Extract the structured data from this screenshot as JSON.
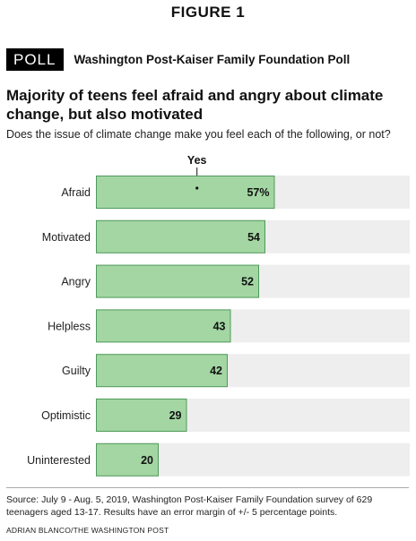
{
  "figure_label": "FIGURE 1",
  "poll_badge": "POLL",
  "poll_source": "Washington Post-Kaiser Family Foundation Poll",
  "headline": "Majority of teens feel afraid and angry about climate change, but also motivated",
  "subhead": "Does the issue of climate change make you feel each of the following, or not?",
  "source_note": "Source: July 9 - Aug. 5, 2019, Washington Post-Kaiser Family Foundation survey of 629 teenagers aged 13-17. Results have an error margin of +/- 5 percentage points.",
  "credit": "ADRIAN BLANCO/THE WASHINGTON POST",
  "colors": {
    "bar_fill": "#a3d6a3",
    "bar_stroke": "#4f9a5a",
    "track": "#eeeeee"
  },
  "chart_data": {
    "type": "bar",
    "orientation": "horizontal",
    "series_label": "Yes",
    "categories": [
      "Afraid",
      "Motivated",
      "Angry",
      "Helpless",
      "Guilty",
      "Optimistic",
      "Uninterested"
    ],
    "values": [
      57,
      54,
      52,
      43,
      42,
      29,
      20
    ],
    "value_labels": [
      "57%",
      "54",
      "52",
      "43",
      "42",
      "29",
      "20"
    ],
    "xlim": [
      0,
      100
    ],
    "grid": false
  }
}
